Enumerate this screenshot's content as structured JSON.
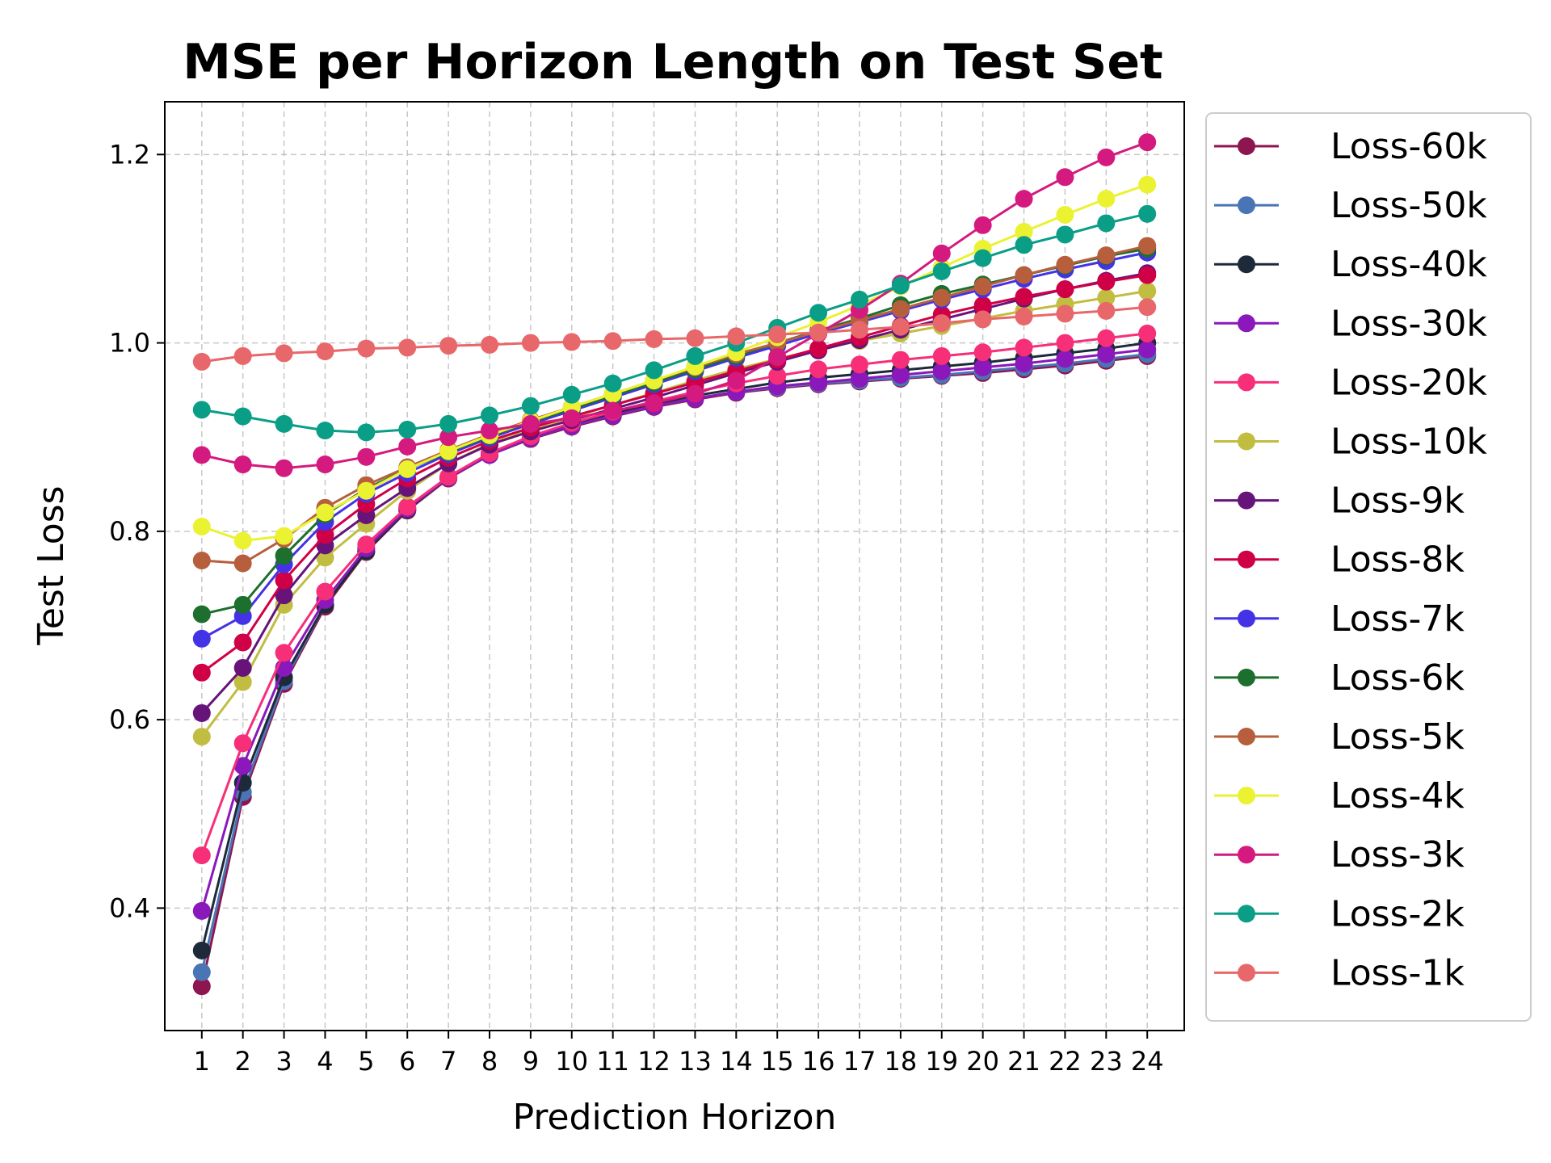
{
  "chart_data": {
    "type": "line",
    "title": "MSE per Horizon Length on Test Set",
    "xlabel": "Prediction Horizon",
    "ylabel": "Test Loss",
    "x": [
      1,
      2,
      3,
      4,
      5,
      6,
      7,
      8,
      9,
      10,
      11,
      12,
      13,
      14,
      15,
      16,
      17,
      18,
      19,
      20,
      21,
      22,
      23,
      24
    ],
    "x_tick_labels": [
      "1",
      "2",
      "3",
      "4",
      "5",
      "6",
      "7",
      "8",
      "9",
      "10",
      "11",
      "12",
      "13",
      "14",
      "15",
      "16",
      "17",
      "18",
      "19",
      "20",
      "21",
      "22",
      "23",
      "24"
    ],
    "xlim": [
      0.1,
      24.9
    ],
    "ylim": [
      0.27,
      1.256
    ],
    "y_ticks": [
      0.4,
      0.6,
      0.8,
      1.0,
      1.2
    ],
    "y_tick_labels": [
      "0.4",
      "0.6",
      "0.8",
      "1.0",
      "1.2"
    ],
    "grid": true,
    "legend_position": "outside-right",
    "series": [
      {
        "name": "Loss-60k",
        "color": "#8e1650",
        "values": [
          0.317,
          0.518,
          0.638,
          0.72,
          0.778,
          0.822,
          0.856,
          0.881,
          0.898,
          0.911,
          0.922,
          0.932,
          0.94,
          0.947,
          0.952,
          0.956,
          0.959,
          0.962,
          0.965,
          0.968,
          0.972,
          0.976,
          0.981,
          0.986
        ]
      },
      {
        "name": "Loss-50k",
        "color": "#4a75b5",
        "values": [
          0.332,
          0.523,
          0.641,
          0.722,
          0.779,
          0.823,
          0.857,
          0.882,
          0.899,
          0.912,
          0.923,
          0.933,
          0.941,
          0.948,
          0.953,
          0.957,
          0.96,
          0.963,
          0.966,
          0.97,
          0.974,
          0.978,
          0.983,
          0.988
        ]
      },
      {
        "name": "Loss-40k",
        "color": "#1e2a3a",
        "values": [
          0.355,
          0.533,
          0.645,
          0.722,
          0.779,
          0.823,
          0.857,
          0.882,
          0.9,
          0.913,
          0.925,
          0.935,
          0.944,
          0.951,
          0.958,
          0.963,
          0.967,
          0.971,
          0.975,
          0.979,
          0.984,
          0.989,
          0.994,
          1.0
        ]
      },
      {
        "name": "Loss-30k",
        "color": "#8a18bb",
        "values": [
          0.397,
          0.551,
          0.655,
          0.727,
          0.782,
          0.824,
          0.857,
          0.881,
          0.899,
          0.912,
          0.923,
          0.933,
          0.941,
          0.948,
          0.954,
          0.958,
          0.962,
          0.966,
          0.97,
          0.974,
          0.978,
          0.983,
          0.988,
          0.993
        ]
      },
      {
        "name": "Loss-20k",
        "color": "#f72e78",
        "values": [
          0.456,
          0.575,
          0.671,
          0.736,
          0.786,
          0.826,
          0.858,
          0.883,
          0.901,
          0.915,
          0.927,
          0.938,
          0.948,
          0.957,
          0.965,
          0.972,
          0.977,
          0.982,
          0.986,
          0.99,
          0.995,
          1.0,
          1.005,
          1.01
        ]
      },
      {
        "name": "Loss-10k",
        "color": "#c1bd40",
        "values": [
          0.582,
          0.64,
          0.722,
          0.772,
          0.808,
          0.843,
          0.872,
          0.893,
          0.908,
          0.921,
          0.934,
          0.947,
          0.96,
          0.972,
          0.983,
          0.993,
          1.002,
          1.01,
          1.018,
          1.026,
          1.034,
          1.041,
          1.048,
          1.055
        ]
      },
      {
        "name": "Loss-9k",
        "color": "#66147a",
        "values": [
          0.607,
          0.655,
          0.732,
          0.785,
          0.817,
          0.846,
          0.872,
          0.892,
          0.906,
          0.918,
          0.93,
          0.942,
          0.955,
          0.968,
          0.98,
          0.992,
          1.003,
          1.014,
          1.025,
          1.036,
          1.047,
          1.057,
          1.066,
          1.074
        ]
      },
      {
        "name": "Loss-8k",
        "color": "#d00047",
        "values": [
          0.65,
          0.682,
          0.748,
          0.796,
          0.829,
          0.856,
          0.878,
          0.896,
          0.91,
          0.922,
          0.934,
          0.946,
          0.958,
          0.97,
          0.982,
          0.994,
          1.006,
          1.018,
          1.03,
          1.04,
          1.049,
          1.057,
          1.065,
          1.072
        ]
      },
      {
        "name": "Loss-7k",
        "color": "#4433e6",
        "values": [
          0.686,
          0.71,
          0.765,
          0.81,
          0.84,
          0.862,
          0.882,
          0.899,
          0.914,
          0.928,
          0.942,
          0.956,
          0.97,
          0.984,
          0.997,
          1.01,
          1.022,
          1.034,
          1.046,
          1.057,
          1.068,
          1.078,
          1.087,
          1.096
        ]
      },
      {
        "name": "Loss-6k",
        "color": "#1c6f2c",
        "values": [
          0.712,
          0.722,
          0.774,
          0.818,
          0.845,
          0.866,
          0.884,
          0.901,
          0.916,
          0.93,
          0.944,
          0.958,
          0.972,
          0.986,
          1.0,
          1.013,
          1.026,
          1.04,
          1.052,
          1.062,
          1.072,
          1.082,
          1.092,
          1.1
        ]
      },
      {
        "name": "Loss-5k",
        "color": "#b75f3d",
        "values": [
          0.769,
          0.766,
          0.792,
          0.825,
          0.849,
          0.868,
          0.886,
          0.903,
          0.918,
          0.932,
          0.946,
          0.96,
          0.974,
          0.988,
          1.0,
          1.012,
          1.024,
          1.036,
          1.048,
          1.06,
          1.072,
          1.083,
          1.093,
          1.103
        ]
      },
      {
        "name": "Loss-4k",
        "color": "#eaf232",
        "values": [
          0.805,
          0.79,
          0.795,
          0.82,
          0.843,
          0.866,
          0.885,
          0.902,
          0.917,
          0.932,
          0.946,
          0.96,
          0.975,
          0.99,
          1.006,
          1.022,
          1.04,
          1.06,
          1.08,
          1.1,
          1.118,
          1.136,
          1.153,
          1.168
        ]
      },
      {
        "name": "Loss-3k",
        "color": "#d4197f",
        "values": [
          0.881,
          0.871,
          0.867,
          0.871,
          0.879,
          0.89,
          0.9,
          0.907,
          0.914,
          0.92,
          0.928,
          0.936,
          0.946,
          0.96,
          0.985,
          1.01,
          1.035,
          1.063,
          1.095,
          1.125,
          1.153,
          1.176,
          1.197,
          1.213
        ]
      },
      {
        "name": "Loss-2k",
        "color": "#0b9e87",
        "values": [
          0.929,
          0.922,
          0.914,
          0.907,
          0.905,
          0.908,
          0.914,
          0.923,
          0.933,
          0.945,
          0.957,
          0.971,
          0.986,
          1.0,
          1.016,
          1.032,
          1.046,
          1.061,
          1.076,
          1.09,
          1.104,
          1.115,
          1.127,
          1.137
        ]
      },
      {
        "name": "Loss-1k",
        "color": "#e8676a",
        "values": [
          0.98,
          0.986,
          0.989,
          0.991,
          0.994,
          0.995,
          0.997,
          0.998,
          1.0,
          1.001,
          1.002,
          1.004,
          1.005,
          1.007,
          1.009,
          1.011,
          1.014,
          1.017,
          1.021,
          1.025,
          1.028,
          1.031,
          1.034,
          1.038
        ]
      }
    ]
  }
}
